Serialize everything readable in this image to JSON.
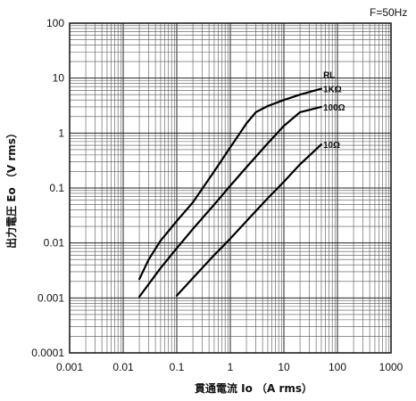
{
  "chart_data": {
    "type": "line",
    "xlabel": "貫通電流 Io （A rms）",
    "ylabel": "出力電圧 Eo （V rms）",
    "annotation": "F=50Hz",
    "x_scale": "log",
    "y_scale": "log",
    "xlim": [
      0.001,
      1000
    ],
    "ylim": [
      0.0001,
      100
    ],
    "x_ticks": [
      "0.001",
      "0.01",
      "0.1",
      "1",
      "10",
      "100",
      "1000"
    ],
    "y_ticks": [
      "100",
      "10",
      "1",
      "0.1",
      "0.01",
      "0.001",
      "0.0001"
    ],
    "grid": true,
    "rl_label": "RL",
    "series": [
      {
        "name": "1KΩ",
        "points": [
          [
            0.02,
            0.0022
          ],
          [
            0.03,
            0.005
          ],
          [
            0.05,
            0.011
          ],
          [
            0.1,
            0.025
          ],
          [
            0.2,
            0.055
          ],
          [
            0.5,
            0.2
          ],
          [
            1,
            0.55
          ],
          [
            2,
            1.5
          ],
          [
            3,
            2.4
          ],
          [
            5,
            3.1
          ],
          [
            10,
            4.0
          ],
          [
            20,
            5.0
          ],
          [
            50,
            6.4
          ]
        ]
      },
      {
        "name": "100Ω",
        "points": [
          [
            0.02,
            0.00105
          ],
          [
            0.05,
            0.0035
          ],
          [
            0.1,
            0.008
          ],
          [
            0.2,
            0.018
          ],
          [
            0.5,
            0.05
          ],
          [
            1,
            0.11
          ],
          [
            2,
            0.24
          ],
          [
            5,
            0.65
          ],
          [
            10,
            1.35
          ],
          [
            20,
            2.4
          ],
          [
            50,
            3.0
          ]
        ]
      },
      {
        "name": "10Ω",
        "points": [
          [
            0.1,
            0.0011
          ],
          [
            0.2,
            0.0023
          ],
          [
            0.5,
            0.006
          ],
          [
            1,
            0.012
          ],
          [
            2,
            0.025
          ],
          [
            5,
            0.065
          ],
          [
            10,
            0.13
          ],
          [
            20,
            0.27
          ],
          [
            50,
            0.62
          ]
        ]
      }
    ]
  }
}
